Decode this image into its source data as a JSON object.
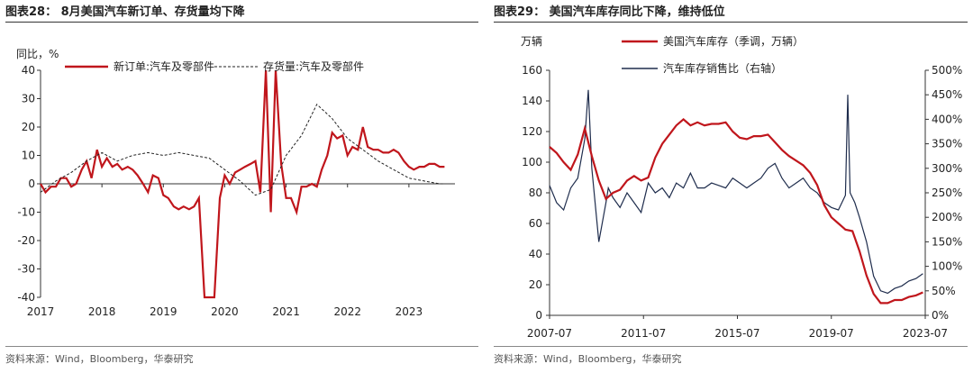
{
  "left": {
    "title": "图表28： 8月美国汽车新订单、存货量均下降",
    "source": "资料来源：Wind，Bloomberg，华泰研究",
    "chart_data": {
      "type": "line",
      "unit_label": "同比，%",
      "ylim": [
        -40,
        40
      ],
      "yticks": [
        40,
        30,
        20,
        10,
        0,
        -10,
        -20,
        -30,
        -40
      ],
      "xlim": [
        2017.0,
        2023.75
      ],
      "xticks": [
        "2017",
        "2018",
        "2019",
        "2020",
        "2021",
        "2022",
        "2023"
      ],
      "series": [
        {
          "name": "新订单:汽车及零部件",
          "color": "#c0161c",
          "style": "solid",
          "x": [
            2017.0,
            2017.08,
            2017.17,
            2017.25,
            2017.33,
            2017.42,
            2017.5,
            2017.58,
            2017.67,
            2017.75,
            2017.83,
            2017.92,
            2018.0,
            2018.08,
            2018.17,
            2018.25,
            2018.33,
            2018.42,
            2018.5,
            2018.58,
            2018.67,
            2018.75,
            2018.83,
            2018.92,
            2019.0,
            2019.08,
            2019.17,
            2019.25,
            2019.33,
            2019.42,
            2019.5,
            2019.58,
            2019.67,
            2019.75,
            2019.83,
            2019.92,
            2020.0,
            2020.08,
            2020.17,
            2020.25,
            2020.33,
            2020.42,
            2020.5,
            2020.58,
            2020.67,
            2020.75,
            2020.83,
            2020.92,
            2021.0,
            2021.08,
            2021.17,
            2021.25,
            2021.33,
            2021.42,
            2021.5,
            2021.58,
            2021.67,
            2021.75,
            2021.83,
            2021.92,
            2022.0,
            2022.08,
            2022.17,
            2022.25,
            2022.33,
            2022.42,
            2022.5,
            2022.58,
            2022.67,
            2022.75,
            2022.83,
            2022.92,
            2023.0,
            2023.08,
            2023.17,
            2023.25,
            2023.33,
            2023.42,
            2023.5,
            2023.58
          ],
          "values": [
            0,
            -3,
            -1,
            -1,
            2,
            2,
            -1,
            0,
            5,
            8,
            2,
            12,
            6,
            9,
            6,
            7,
            5,
            6,
            5,
            3,
            0,
            -3,
            3,
            2,
            -4,
            -5,
            -8,
            -9,
            -8,
            -9,
            -8,
            -5,
            -40,
            -40,
            -40,
            -5,
            3,
            0,
            4,
            5,
            6,
            7,
            8,
            -3,
            40,
            -10,
            40,
            7,
            -5,
            -5,
            -10,
            -1,
            -1,
            0,
            -1,
            5,
            10,
            18,
            16,
            17,
            10,
            13,
            12,
            20,
            13,
            12,
            12,
            11,
            11,
            12,
            11,
            8,
            6,
            5,
            6,
            6,
            7,
            7,
            6,
            6
          ]
        },
        {
          "name": "存货量:汽车及零部件",
          "color": "#222222",
          "style": "dashed",
          "x": [
            2017.0,
            2017.25,
            2017.5,
            2017.75,
            2018.0,
            2018.25,
            2018.5,
            2018.75,
            2019.0,
            2019.25,
            2019.5,
            2019.75,
            2020.0,
            2020.25,
            2020.5,
            2020.75,
            2021.0,
            2021.25,
            2021.5,
            2021.75,
            2022.0,
            2022.25,
            2022.5,
            2022.75,
            2023.0,
            2023.25,
            2023.5,
            2023.58
          ],
          "values": [
            -3,
            1,
            4,
            8,
            11,
            8,
            10,
            11,
            10,
            11,
            10,
            9,
            5,
            1,
            -4,
            -2,
            10,
            17,
            28,
            23,
            16,
            12,
            8,
            5,
            2,
            1,
            0,
            0
          ]
        }
      ]
    }
  },
  "right": {
    "title": "图表29： 美国汽车库存同比下降，维持低位",
    "source": "资料来源：Wind，Bloomberg，华泰研究",
    "chart_data": {
      "type": "line",
      "left_unit": "万辆",
      "ylim": [
        0,
        160
      ],
      "yticks": [
        0,
        20,
        40,
        60,
        80,
        100,
        120,
        140,
        160
      ],
      "y2lim": [
        0,
        500
      ],
      "y2ticks": [
        "0%",
        "50%",
        "100%",
        "150%",
        "200%",
        "250%",
        "300%",
        "350%",
        "400%",
        "450%",
        "500%"
      ],
      "xlim": [
        2007.5,
        2023.5
      ],
      "xticks": [
        "2007-07",
        "2011-07",
        "2015-07",
        "2019-07",
        "2023-07"
      ],
      "series": [
        {
          "name": "美国汽车库存（季调，万辆）",
          "color": "#c0161c",
          "axis": "left",
          "x": [
            2007.5,
            2007.8,
            2008.1,
            2008.4,
            2008.7,
            2009.0,
            2009.3,
            2009.6,
            2009.9,
            2010.2,
            2010.5,
            2010.8,
            2011.1,
            2011.4,
            2011.7,
            2012.0,
            2012.3,
            2012.6,
            2012.9,
            2013.2,
            2013.5,
            2013.8,
            2014.1,
            2014.4,
            2014.7,
            2015.0,
            2015.3,
            2015.6,
            2015.9,
            2016.2,
            2016.5,
            2016.8,
            2017.1,
            2017.4,
            2017.7,
            2018.0,
            2018.3,
            2018.6,
            2018.9,
            2019.2,
            2019.5,
            2019.8,
            2020.1,
            2020.4,
            2020.7,
            2021.0,
            2021.3,
            2021.6,
            2021.9,
            2022.2,
            2022.5,
            2022.8,
            2023.1,
            2023.4
          ],
          "values": [
            110,
            106,
            100,
            95,
            105,
            122,
            104,
            88,
            76,
            80,
            82,
            88,
            91,
            88,
            90,
            103,
            112,
            118,
            124,
            128,
            124,
            126,
            124,
            125,
            125,
            126,
            120,
            116,
            115,
            117,
            117,
            118,
            113,
            108,
            104,
            101,
            98,
            93,
            85,
            72,
            64,
            60,
            56,
            55,
            42,
            26,
            14,
            8,
            8,
            10,
            10,
            12,
            13,
            15
          ]
        },
        {
          "name": "汽车库存销售比（右轴）",
          "color": "#1f2d4d",
          "axis": "right",
          "x": [
            2007.5,
            2007.8,
            2008.1,
            2008.4,
            2008.7,
            2009.0,
            2009.15,
            2009.3,
            2009.6,
            2009.9,
            2010.0,
            2010.2,
            2010.5,
            2010.8,
            2011.1,
            2011.4,
            2011.7,
            2012.0,
            2012.3,
            2012.6,
            2012.9,
            2013.2,
            2013.5,
            2013.8,
            2014.1,
            2014.4,
            2014.7,
            2015.0,
            2015.3,
            2015.6,
            2015.9,
            2016.2,
            2016.5,
            2016.8,
            2017.1,
            2017.4,
            2017.7,
            2018.0,
            2018.3,
            2018.6,
            2018.9,
            2019.2,
            2019.5,
            2019.8,
            2020.1,
            2020.2,
            2020.3,
            2020.5,
            2020.7,
            2021.0,
            2021.3,
            2021.6,
            2021.9,
            2022.2,
            2022.5,
            2022.8,
            2023.1,
            2023.4
          ],
          "values": [
            265,
            230,
            215,
            260,
            280,
            360,
            460,
            300,
            150,
            230,
            260,
            240,
            220,
            250,
            230,
            210,
            270,
            250,
            260,
            240,
            270,
            260,
            290,
            260,
            260,
            270,
            265,
            260,
            280,
            270,
            260,
            270,
            280,
            300,
            310,
            280,
            260,
            270,
            280,
            260,
            250,
            230,
            220,
            215,
            245,
            450,
            250,
            230,
            200,
            150,
            80,
            50,
            45,
            55,
            60,
            70,
            75,
            85
          ]
        }
      ]
    }
  }
}
